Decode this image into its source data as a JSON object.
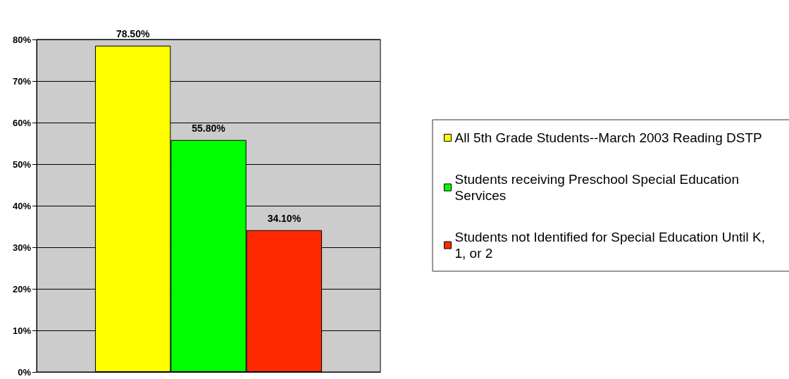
{
  "chart_data": {
    "type": "bar",
    "categories": [
      null
    ],
    "series": [
      {
        "name": "All 5th Grade Students--March 2003 Reading DSTP",
        "color": "#ffff00",
        "values": [
          78.5
        ],
        "value_labels": [
          "78.50%"
        ]
      },
      {
        "name": "Students receiving Preschool Special Education Services",
        "color": "#00ff00",
        "values": [
          55.8
        ],
        "value_labels": [
          "55.80%"
        ]
      },
      {
        "name": "Students not Identified for Special Education Until K, 1, or 2",
        "color": "#ff2a00",
        "values": [
          34.1
        ],
        "value_labels": [
          "34.10%"
        ]
      }
    ],
    "ylim": [
      0,
      80
    ],
    "yticks": [
      {
        "value": 0,
        "label": "0%"
      },
      {
        "value": 10,
        "label": "10%"
      },
      {
        "value": 20,
        "label": "20%"
      },
      {
        "value": 30,
        "label": "30%"
      },
      {
        "value": 40,
        "label": "40%"
      },
      {
        "value": 50,
        "label": "50%"
      },
      {
        "value": 60,
        "label": "60%"
      },
      {
        "value": 70,
        "label": "70%"
      },
      {
        "value": 80,
        "label": "80%"
      }
    ],
    "grid": "y",
    "legend": "right"
  }
}
